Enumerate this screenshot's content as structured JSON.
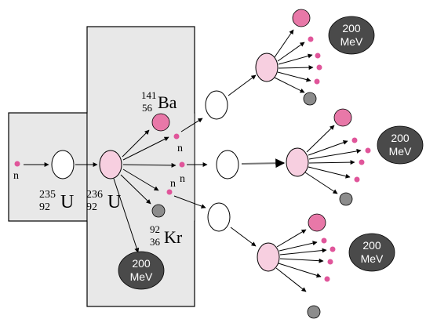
{
  "neutron_label": "n",
  "uranium235": {
    "mass": "235",
    "atomic": "92",
    "symbol": "U"
  },
  "uranium236": {
    "mass": "236",
    "atomic": "92",
    "symbol": "U"
  },
  "barium": {
    "mass": "141",
    "atomic": "56",
    "symbol": "Ba"
  },
  "krypton": {
    "mass": "92",
    "atomic": "36",
    "symbol": "Kr"
  },
  "energy": {
    "value": "200",
    "unit": "MeV"
  },
  "colors": {
    "neutron": "#e0559a",
    "barium": "#e878a8",
    "krypton": "#8c8c8c",
    "excited_nucleus": "#f7cfe0",
    "energy_bubble": "#4a4a4a",
    "panel": "#e8e8e8"
  }
}
